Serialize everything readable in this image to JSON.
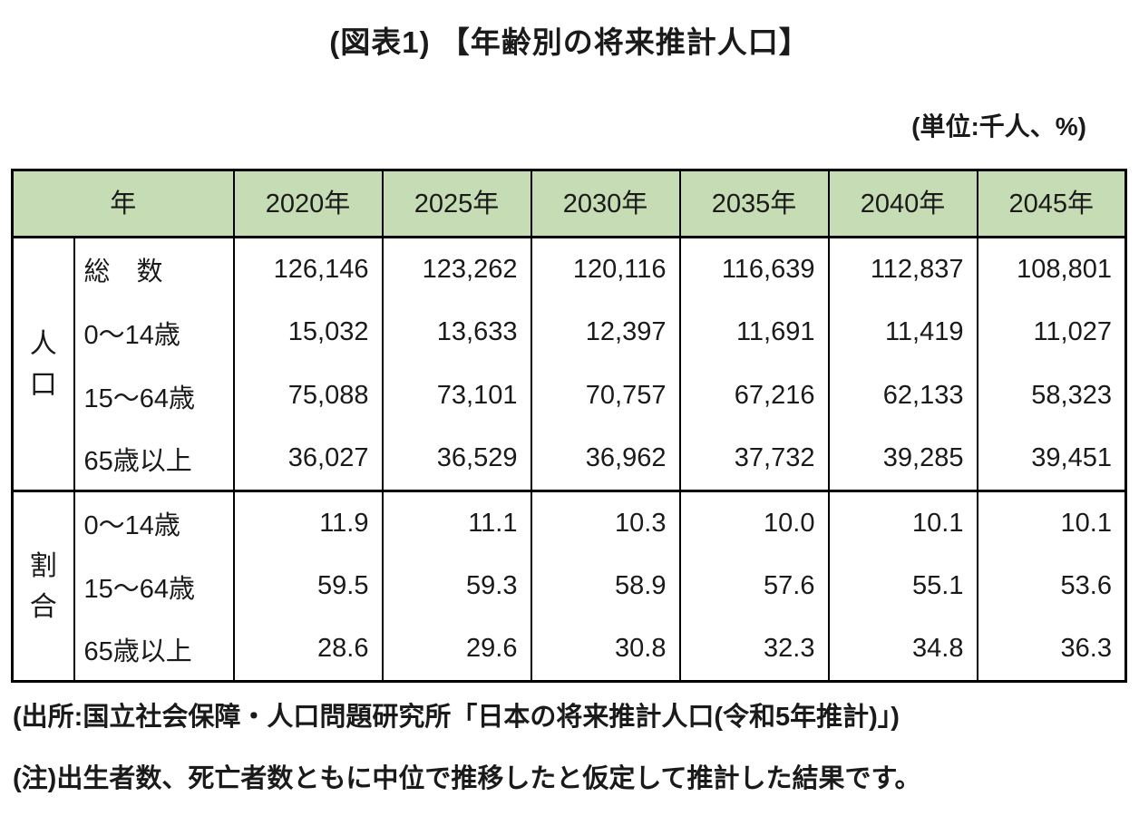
{
  "page": {
    "title": "(図表1) 【年齢別の将来推計人口】",
    "unit_note": "(単位:千人、%)",
    "source_note": "(出所:国立社会保障・人口問題研究所「日本の将来推計人口(令和5年推計)」)",
    "assumption_note": "(注)出生者数、死亡者数ともに中位で推移したと仮定して推計した結果です。"
  },
  "table": {
    "corner_label": "年",
    "year_columns": [
      "2020年",
      "2025年",
      "2030年",
      "2035年",
      "2040年",
      "2045年"
    ],
    "sections": [
      {
        "group_label": "人口",
        "rows": [
          {
            "label": "総　数",
            "values": [
              "126,146",
              "123,262",
              "120,116",
              "116,639",
              "112,837",
              "108,801"
            ]
          },
          {
            "label": "0〜14歳",
            "values": [
              "15,032",
              "13,633",
              "12,397",
              "11,691",
              "11,419",
              "11,027"
            ]
          },
          {
            "label": "15〜64歳",
            "values": [
              "75,088",
              "73,101",
              "70,757",
              "67,216",
              "62,133",
              "58,323"
            ]
          },
          {
            "label": "65歳以上",
            "values": [
              "36,027",
              "36,529",
              "36,962",
              "37,732",
              "39,285",
              "39,451"
            ]
          }
        ]
      },
      {
        "group_label": "割合",
        "rows": [
          {
            "label": "0〜14歳",
            "values": [
              "11.9",
              "11.1",
              "10.3",
              "10.0",
              "10.1",
              "10.1"
            ]
          },
          {
            "label": "15〜64歳",
            "values": [
              "59.5",
              "59.3",
              "58.9",
              "57.6",
              "55.1",
              "53.6"
            ]
          },
          {
            "label": "65歳以上",
            "values": [
              "28.6",
              "29.6",
              "30.8",
              "32.3",
              "34.8",
              "36.3"
            ]
          }
        ]
      }
    ]
  },
  "colors": {
    "header_bg": "#c6dcb4",
    "border": "#000000",
    "text": "#1a1a1a"
  }
}
